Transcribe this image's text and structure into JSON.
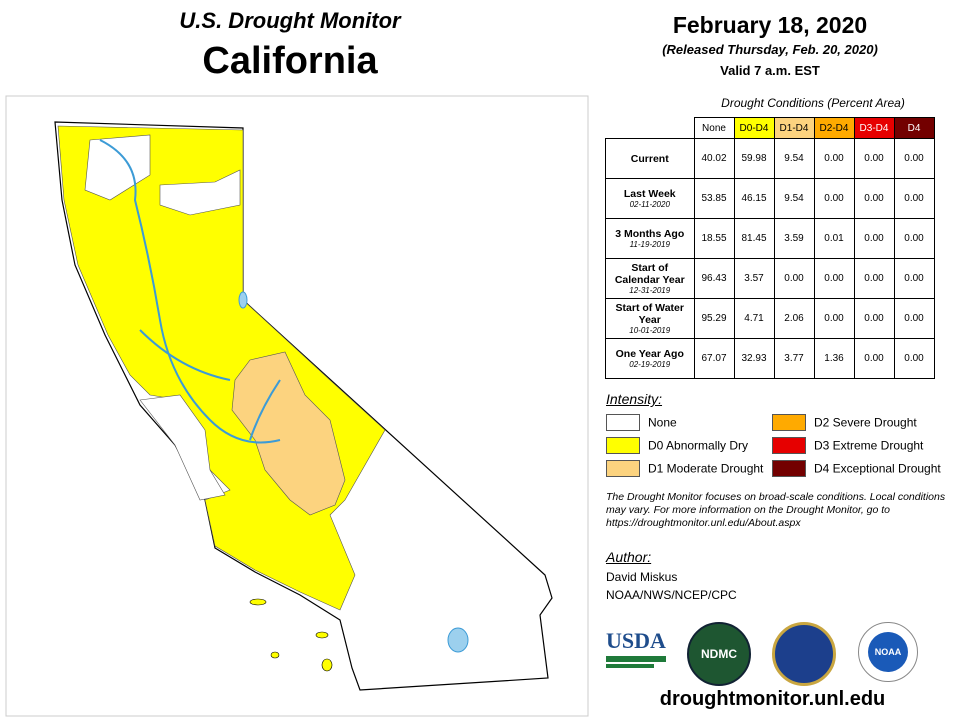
{
  "header": {
    "title": "U.S. Drought Monitor",
    "state": "California"
  },
  "date": {
    "date": "February 18, 2020",
    "released": "(Released Thursday, Feb. 20, 2020)",
    "valid": "Valid 7 a.m. EST"
  },
  "table": {
    "caption": "Drought Conditions (Percent Area)",
    "columns": [
      {
        "label": "None",
        "color": "#ffffff",
        "text": "#000000"
      },
      {
        "label": "D0-D4",
        "color": "#ffff00",
        "text": "#000000"
      },
      {
        "label": "D1-D4",
        "color": "#fcd37f",
        "text": "#000000"
      },
      {
        "label": "D2-D4",
        "color": "#ffaa00",
        "text": "#000000"
      },
      {
        "label": "D3-D4",
        "color": "#e60000",
        "text": "#ffffff"
      },
      {
        "label": "D4",
        "color": "#730000",
        "text": "#ffffff"
      }
    ],
    "rows": [
      {
        "label": "Current",
        "values": [
          "40.02",
          "59.98",
          "9.54",
          "0.00",
          "0.00",
          "0.00"
        ]
      },
      {
        "label": "Last Week",
        "date": "02-11-2020",
        "values": [
          "53.85",
          "46.15",
          "9.54",
          "0.00",
          "0.00",
          "0.00"
        ]
      },
      {
        "label": "3 Months Ago",
        "date": "11-19-2019",
        "values": [
          "18.55",
          "81.45",
          "3.59",
          "0.01",
          "0.00",
          "0.00"
        ]
      },
      {
        "label": "Start of Calendar Year",
        "date": "12-31-2019",
        "values": [
          "96.43",
          "3.57",
          "0.00",
          "0.00",
          "0.00",
          "0.00"
        ]
      },
      {
        "label": "Start of Water Year",
        "date": "10-01-2019",
        "values": [
          "95.29",
          "4.71",
          "2.06",
          "0.00",
          "0.00",
          "0.00"
        ]
      },
      {
        "label": "One Year Ago",
        "date": "02-19-2019",
        "values": [
          "67.07",
          "32.93",
          "3.77",
          "1.36",
          "0.00",
          "0.00"
        ]
      }
    ]
  },
  "intensity": {
    "title": "Intensity:",
    "items": [
      {
        "label": "None",
        "color": "#ffffff"
      },
      {
        "label": "D0 Abnormally Dry",
        "color": "#ffff00"
      },
      {
        "label": "D1 Moderate Drought",
        "color": "#fcd37f"
      },
      {
        "label": "D2 Severe Drought",
        "color": "#ffaa00"
      },
      {
        "label": "D3 Extreme Drought",
        "color": "#e60000"
      },
      {
        "label": "D4 Exceptional Drought",
        "color": "#730000"
      }
    ]
  },
  "note": "The Drought Monitor focuses on broad-scale conditions. Local conditions may vary. For more information on the Drought Monitor, go to https://droughtmonitor.unl.edu/About.aspx",
  "author": {
    "title": "Author:",
    "name": "David Miskus",
    "org": "NOAA/NWS/NCEP/CPC"
  },
  "logos": [
    "USDA",
    "NDMC",
    "NOAA"
  ],
  "url": "droughtmonitor.unl.edu"
}
